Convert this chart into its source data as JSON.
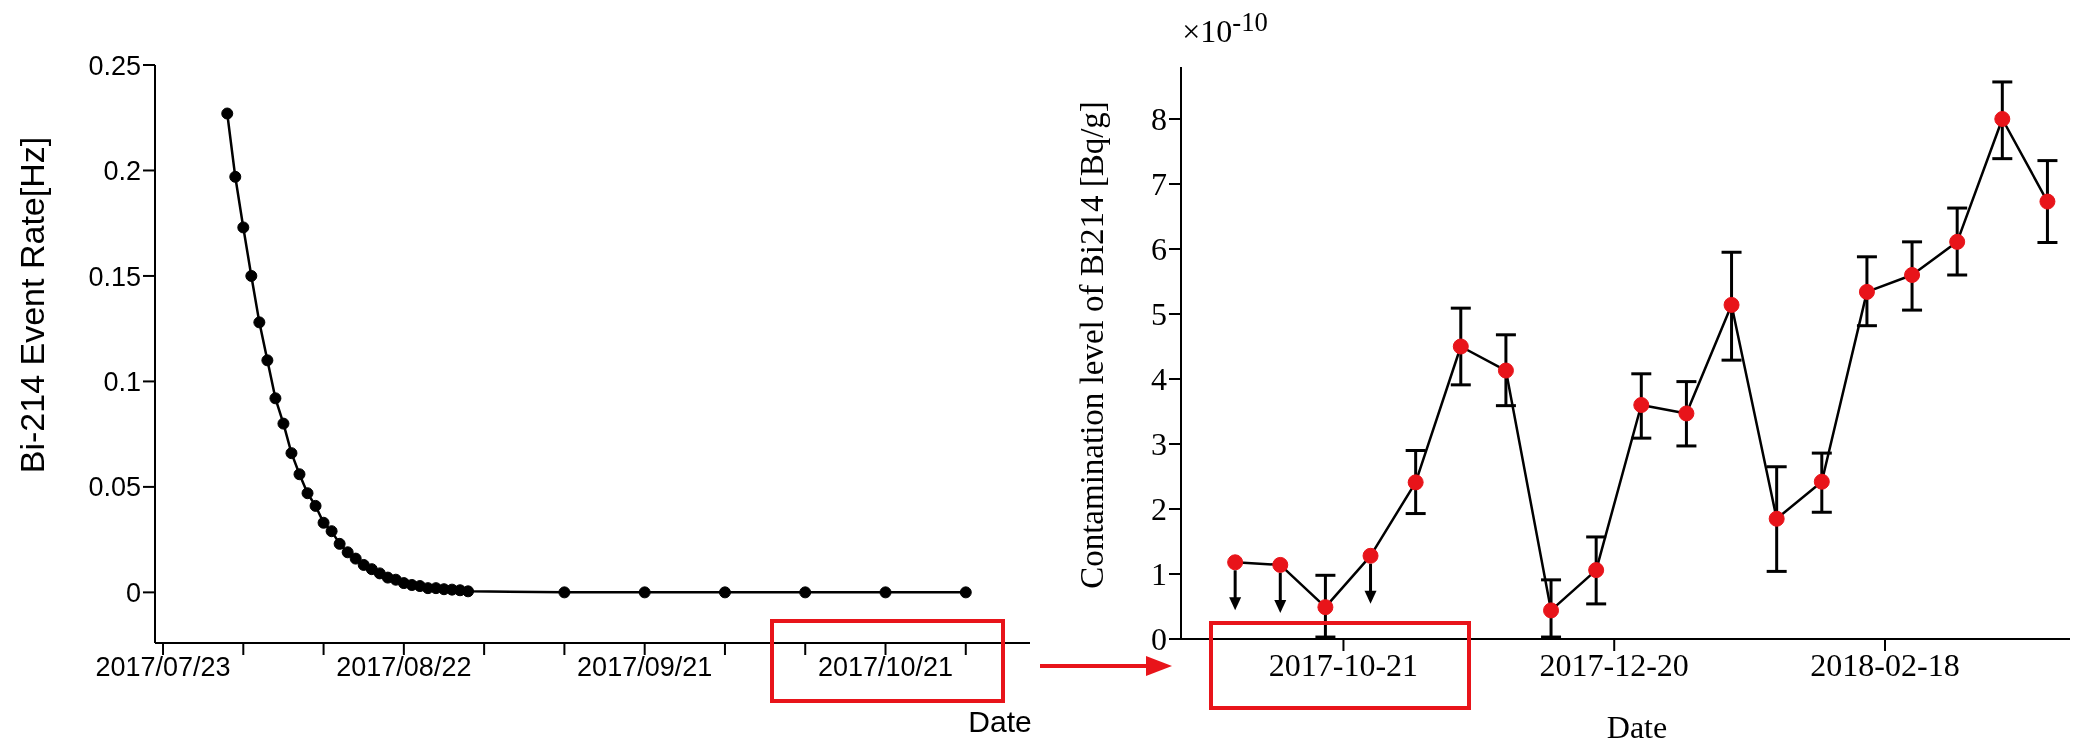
{
  "chart_data": [
    {
      "type": "line",
      "ylabel": "Bi-214 Event Rate[Hz]",
      "xlabel": "Date",
      "color": "#000000",
      "marker": "circle",
      "line_style": "solid",
      "grid": false,
      "x": [
        "2017-07-31",
        "2017-08-01",
        "2017-08-02",
        "2017-08-03",
        "2017-08-04",
        "2017-08-05",
        "2017-08-06",
        "2017-08-07",
        "2017-08-08",
        "2017-08-09",
        "2017-08-10",
        "2017-08-11",
        "2017-08-12",
        "2017-08-13",
        "2017-08-14",
        "2017-08-15",
        "2017-08-16",
        "2017-08-17",
        "2017-08-18",
        "2017-08-19",
        "2017-08-20",
        "2017-08-21",
        "2017-08-22",
        "2017-08-23",
        "2017-08-24",
        "2017-08-25",
        "2017-08-26",
        "2017-08-27",
        "2017-08-28",
        "2017-08-29",
        "2017-08-30",
        "2017-09-11",
        "2017-09-21",
        "2017-10-01",
        "2017-10-11",
        "2017-10-21",
        "2017-10-31"
      ],
      "values": [
        0.227,
        0.197,
        0.173,
        0.15,
        0.128,
        0.11,
        0.092,
        0.08,
        0.066,
        0.056,
        0.047,
        0.041,
        0.033,
        0.029,
        0.023,
        0.019,
        0.016,
        0.013,
        0.011,
        0.009,
        0.007,
        0.006,
        0.0044,
        0.0035,
        0.003,
        0.002,
        0.002,
        0.0015,
        0.0013,
        0.001,
        0.0005,
        0,
        0,
        0,
        0,
        0,
        0
      ],
      "xlim": [
        "2017-07-22",
        "2017-11-08"
      ],
      "xticks": [
        {
          "value": "2017-07-23",
          "label": "2017/07/23"
        },
        {
          "value": "2017-08-02",
          "label": null
        },
        {
          "value": "2017-08-12",
          "label": null
        },
        {
          "value": "2017-08-22",
          "label": "2017/08/22"
        },
        {
          "value": "2017-09-01",
          "label": null
        },
        {
          "value": "2017-09-11",
          "label": null
        },
        {
          "value": "2017-09-21",
          "label": "2017/09/21"
        },
        {
          "value": "2017-10-01",
          "label": null
        },
        {
          "value": "2017-10-11",
          "label": null
        },
        {
          "value": "2017-10-21",
          "label": "2017/10/21"
        },
        {
          "value": "2017-10-31",
          "label": null
        }
      ],
      "ylim": [
        -0.024,
        0.25
      ],
      "yticks": [
        0,
        0.05,
        0.1,
        0.15,
        0.2,
        0.25
      ]
    },
    {
      "type": "line",
      "ylabel": "Contamination level of Bi214 [Bq/g]",
      "xlabel": "Date",
      "annotations": [
        "×10$^{-10}$"
      ],
      "color": "#e8141a",
      "marker": "circle",
      "line_style": "solid",
      "grid": false,
      "x": [
        "2017-09-27",
        "2017-10-07",
        "2017-10-17",
        "2017-10-27",
        "2017-11-06",
        "2017-11-16",
        "2017-11-26",
        "2017-12-06",
        "2017-12-16",
        "2017-12-26",
        "2018-01-05",
        "2018-01-15",
        "2018-01-25",
        "2018-02-04",
        "2018-02-14",
        "2018-02-24",
        "2018-03-06",
        "2018-03-16",
        "2018-03-26"
      ],
      "values": [
        1.18,
        1.14,
        0.49,
        1.28,
        2.41,
        4.5,
        4.13,
        0.44,
        1.06,
        3.6,
        3.47,
        5.14,
        1.85,
        2.42,
        5.34,
        5.6,
        6.11,
        8.0,
        6.73
      ],
      "errors": [
        null,
        null,
        [
          0.03,
          0.98
        ],
        null,
        [
          1.93,
          2.9
        ],
        [
          3.91,
          5.09
        ],
        [
          3.59,
          4.68
        ],
        [
          0.03,
          0.91
        ],
        [
          0.54,
          1.57
        ],
        [
          3.09,
          4.08
        ],
        [
          2.97,
          3.96
        ],
        [
          4.29,
          5.95
        ],
        [
          1.04,
          2.65
        ],
        [
          1.95,
          2.86
        ],
        [
          4.82,
          5.88
        ],
        [
          5.06,
          6.11
        ],
        [
          5.6,
          6.63
        ],
        [
          7.39,
          8.57
        ],
        [
          6.1,
          7.36
        ]
      ],
      "xlim": [
        "2017-09-15",
        "2018-03-31"
      ],
      "xticks": [
        "2017-10-21",
        "2017-12-20",
        "2018-02-18"
      ],
      "ylim": [
        0,
        8.8
      ],
      "yticks": [
        0,
        1,
        2,
        3,
        4,
        5,
        6,
        7,
        8
      ]
    }
  ]
}
